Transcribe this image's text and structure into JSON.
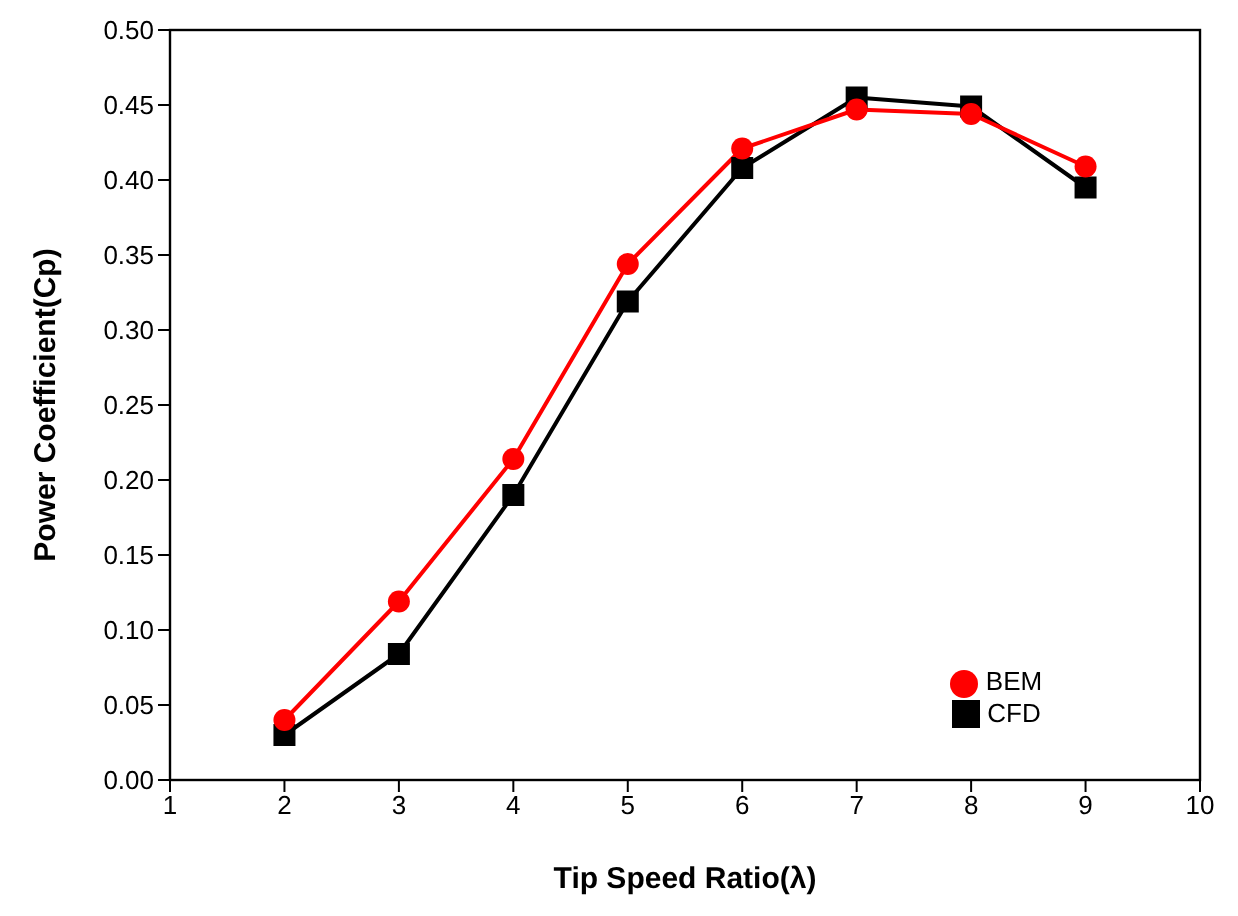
{
  "chart_data": {
    "type": "line",
    "xlabel": "Tip Speed Ratio(λ)",
    "ylabel": "Power Coefficient(Cp)",
    "x": [
      2,
      3,
      4,
      5,
      6,
      7,
      8,
      9
    ],
    "series": [
      {
        "name": "BEM",
        "color": "#ff0000",
        "marker": "circle",
        "values": [
          0.04,
          0.119,
          0.214,
          0.344,
          0.421,
          0.447,
          0.444,
          0.409
        ]
      },
      {
        "name": "CFD",
        "color": "#000000",
        "marker": "square",
        "values": [
          0.03,
          0.084,
          0.19,
          0.319,
          0.408,
          0.455,
          0.449,
          0.395
        ]
      }
    ],
    "xlim": [
      1,
      10
    ],
    "xticks": [
      1,
      2,
      3,
      4,
      5,
      6,
      7,
      8,
      9,
      10
    ],
    "ylim": [
      0,
      0.5
    ],
    "yticks": [
      {
        "value": 0,
        "label": "0.00"
      },
      {
        "value": 0.05,
        "label": "0.05"
      },
      {
        "value": 0.1,
        "label": "0.10"
      },
      {
        "value": 0.15,
        "label": "0.15"
      },
      {
        "value": 0.2,
        "label": "0.20"
      },
      {
        "value": 0.25,
        "label": "0.25"
      },
      {
        "value": 0.3,
        "label": "0.30"
      },
      {
        "value": 0.35,
        "label": "0.35"
      },
      {
        "value": 0.4,
        "label": "0.40"
      },
      {
        "value": 0.45,
        "label": "0.45"
      },
      {
        "value": 0.5,
        "label": "0.50"
      }
    ],
    "grid": false,
    "legend": "bottom right",
    "line_style": "solid"
  }
}
